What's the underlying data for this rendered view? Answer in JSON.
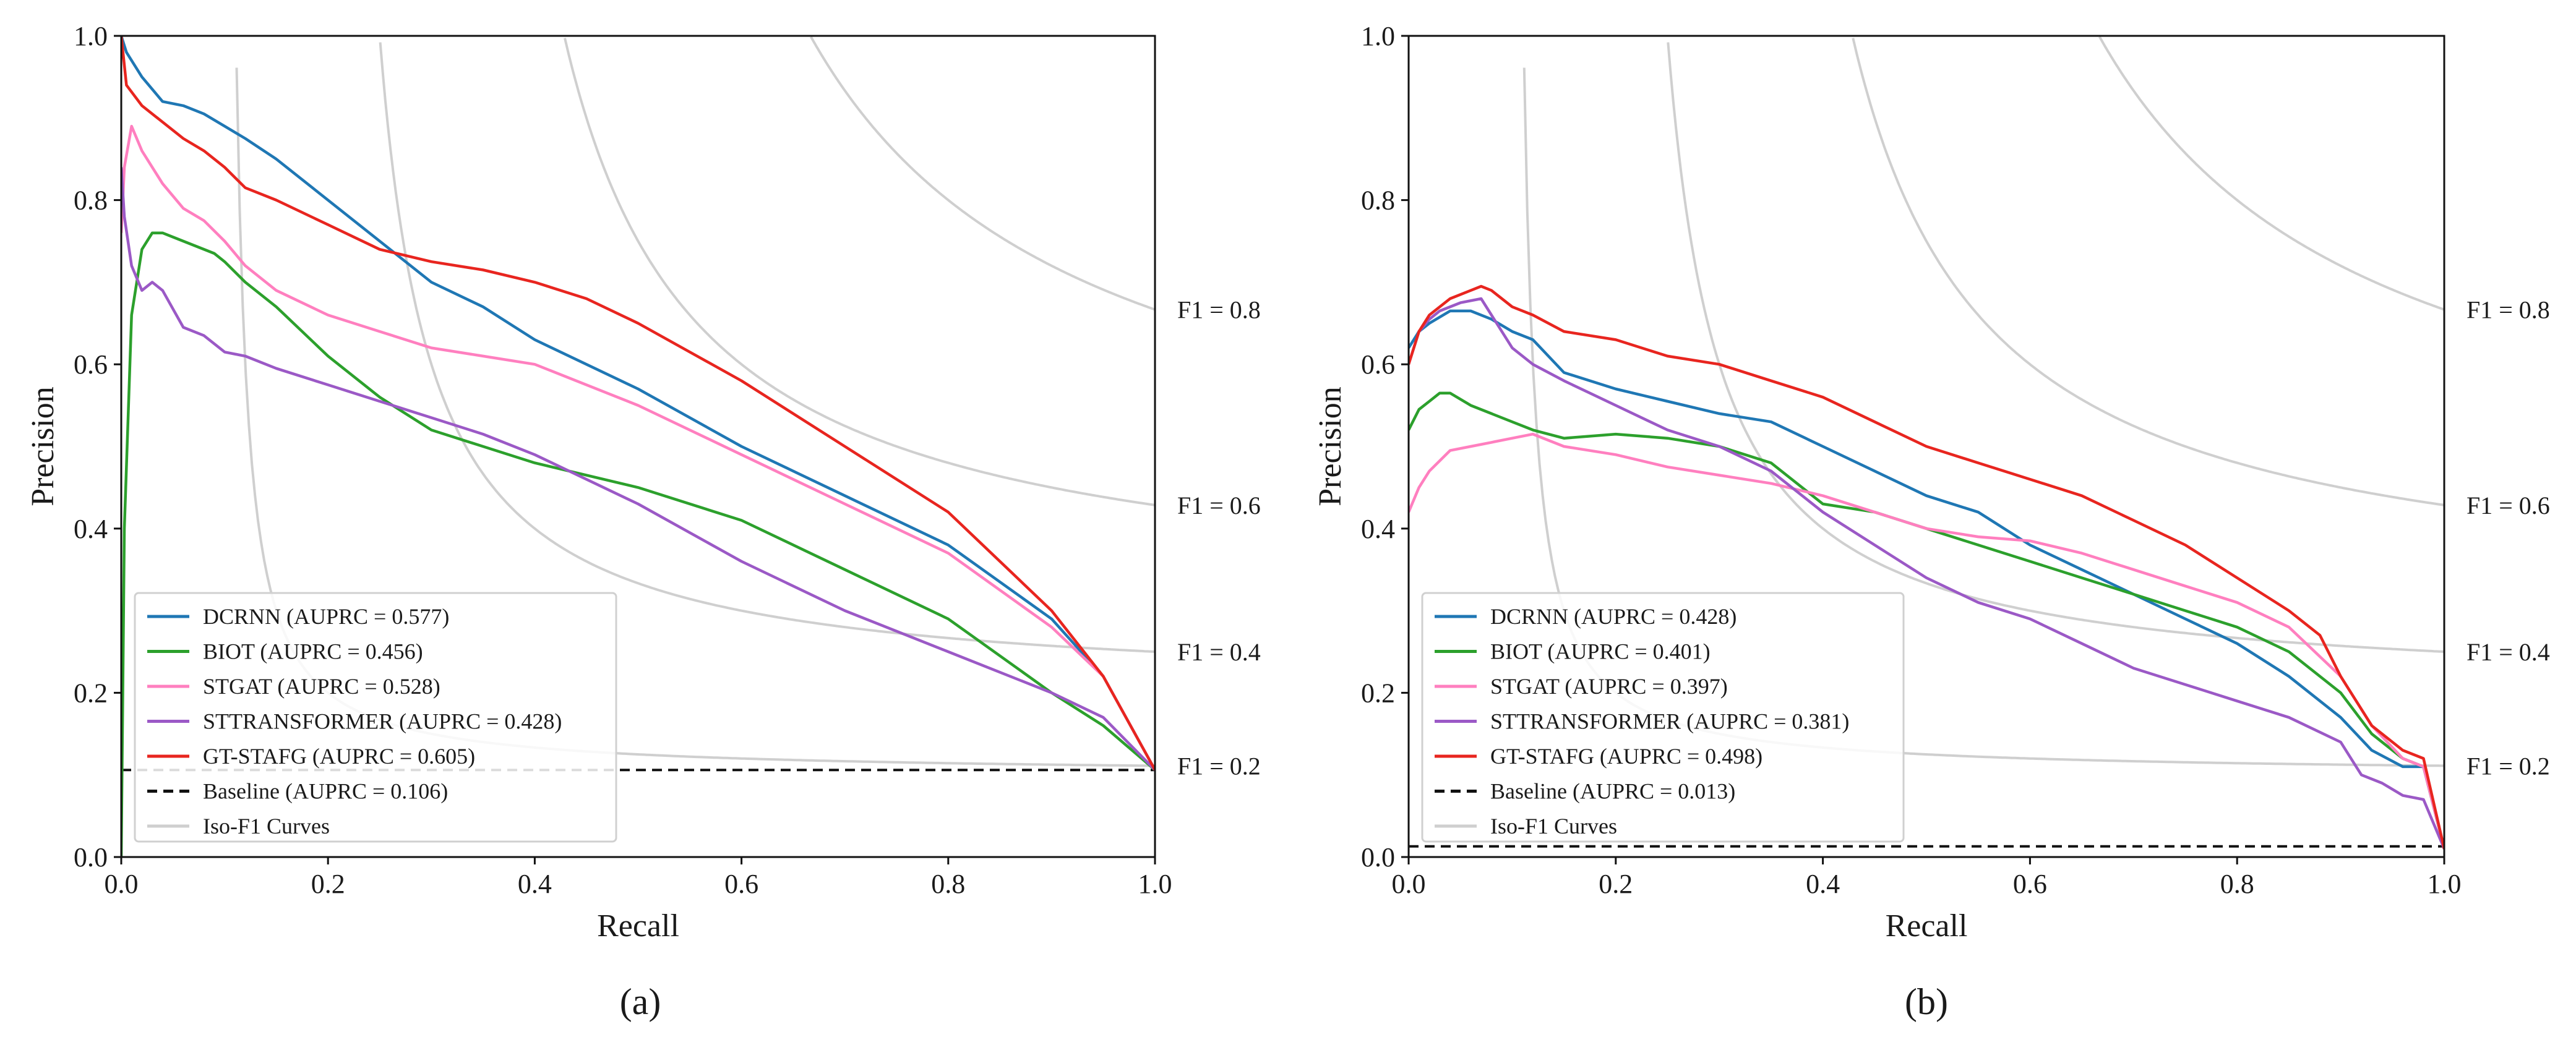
{
  "figure": {
    "panel_labels": [
      "(a)",
      "(b)"
    ]
  },
  "chart_data": [
    {
      "type": "line",
      "panel": "(a)",
      "xlabel": "Recall",
      "ylabel": "Precision",
      "xlim": [
        0,
        1
      ],
      "ylim": [
        0,
        1
      ],
      "xticks": [
        "0.0",
        "0.2",
        "0.4",
        "0.6",
        "0.8",
        "1.0"
      ],
      "yticks": [
        "0.0",
        "0.2",
        "0.4",
        "0.6",
        "0.8",
        "1.0"
      ],
      "grid": false,
      "legend_position": "lower-left",
      "iso_f1": [
        {
          "f": 0.2,
          "label": "F1 = 0.2"
        },
        {
          "f": 0.4,
          "label": "F1 = 0.4"
        },
        {
          "f": 0.6,
          "label": "F1 = 0.6"
        },
        {
          "f": 0.8,
          "label": "F1 = 0.8"
        }
      ],
      "iso_f1_legend": "Iso-F1 Curves",
      "baseline": {
        "value": 0.106,
        "label": "Baseline (AUPRC = 0.106)"
      },
      "series": [
        {
          "name": "DCRNN",
          "label": "DCRNN (AUPRC = 0.577)",
          "color": "#1f77b4",
          "x": [
            0,
            0.005,
            0.02,
            0.04,
            0.06,
            0.08,
            0.1,
            0.12,
            0.15,
            0.2,
            0.25,
            0.3,
            0.35,
            0.4,
            0.5,
            0.6,
            0.7,
            0.8,
            0.9,
            0.95,
            1.0
          ],
          "y": [
            1.0,
            0.98,
            0.95,
            0.92,
            0.915,
            0.905,
            0.89,
            0.875,
            0.85,
            0.8,
            0.75,
            0.7,
            0.67,
            0.63,
            0.57,
            0.5,
            0.44,
            0.38,
            0.29,
            0.22,
            0.106
          ]
        },
        {
          "name": "BIOT",
          "label": "BIOT (AUPRC = 0.456)",
          "color": "#2ca02c",
          "x": [
            0,
            0.003,
            0.01,
            0.02,
            0.03,
            0.04,
            0.05,
            0.07,
            0.09,
            0.1,
            0.12,
            0.15,
            0.2,
            0.25,
            0.3,
            0.35,
            0.4,
            0.5,
            0.6,
            0.7,
            0.8,
            0.9,
            0.95,
            1.0
          ],
          "y": [
            0,
            0.4,
            0.66,
            0.74,
            0.76,
            0.76,
            0.755,
            0.745,
            0.735,
            0.725,
            0.7,
            0.67,
            0.61,
            0.56,
            0.52,
            0.5,
            0.48,
            0.45,
            0.41,
            0.35,
            0.29,
            0.2,
            0.16,
            0.106
          ]
        },
        {
          "name": "STGAT",
          "label": "STGAT (AUPRC = 0.528)",
          "color": "#ff7fbf",
          "x": [
            0,
            0.003,
            0.01,
            0.02,
            0.04,
            0.06,
            0.08,
            0.1,
            0.12,
            0.15,
            0.2,
            0.25,
            0.3,
            0.35,
            0.4,
            0.5,
            0.6,
            0.7,
            0.8,
            0.9,
            0.95,
            1.0
          ],
          "y": [
            0.76,
            0.84,
            0.89,
            0.86,
            0.82,
            0.79,
            0.775,
            0.75,
            0.72,
            0.69,
            0.66,
            0.64,
            0.62,
            0.61,
            0.6,
            0.55,
            0.49,
            0.43,
            0.37,
            0.28,
            0.22,
            0.106
          ]
        },
        {
          "name": "STTRANSFORMER",
          "label": "STTRANSFORMER (AUPRC = 0.428)",
          "color": "#9b59c6",
          "x": [
            0,
            0.003,
            0.01,
            0.02,
            0.03,
            0.04,
            0.06,
            0.08,
            0.1,
            0.12,
            0.15,
            0.2,
            0.25,
            0.3,
            0.35,
            0.4,
            0.5,
            0.6,
            0.7,
            0.8,
            0.9,
            0.95,
            1.0
          ],
          "y": [
            0.84,
            0.78,
            0.72,
            0.69,
            0.7,
            0.69,
            0.645,
            0.635,
            0.615,
            0.61,
            0.595,
            0.575,
            0.555,
            0.535,
            0.515,
            0.49,
            0.43,
            0.36,
            0.3,
            0.25,
            0.2,
            0.17,
            0.106
          ]
        },
        {
          "name": "GT-STAFG",
          "label": "GT-STAFG (AUPRC = 0.605)",
          "color": "#e8251f",
          "x": [
            0,
            0.005,
            0.02,
            0.04,
            0.06,
            0.08,
            0.1,
            0.12,
            0.15,
            0.2,
            0.25,
            0.3,
            0.35,
            0.4,
            0.45,
            0.5,
            0.6,
            0.7,
            0.8,
            0.9,
            0.95,
            1.0
          ],
          "y": [
            1.0,
            0.94,
            0.915,
            0.895,
            0.875,
            0.86,
            0.84,
            0.815,
            0.8,
            0.77,
            0.74,
            0.725,
            0.715,
            0.7,
            0.68,
            0.65,
            0.58,
            0.5,
            0.42,
            0.3,
            0.22,
            0.106
          ]
        }
      ]
    },
    {
      "type": "line",
      "panel": "(b)",
      "xlabel": "Recall",
      "ylabel": "Precision",
      "xlim": [
        0,
        1
      ],
      "ylim": [
        0,
        1
      ],
      "xticks": [
        "0.0",
        "0.2",
        "0.4",
        "0.6",
        "0.8",
        "1.0"
      ],
      "yticks": [
        "0.0",
        "0.2",
        "0.4",
        "0.6",
        "0.8",
        "1.0"
      ],
      "grid": false,
      "legend_position": "lower-left",
      "iso_f1": [
        {
          "f": 0.2,
          "label": "F1 = 0.2"
        },
        {
          "f": 0.4,
          "label": "F1 = 0.4"
        },
        {
          "f": 0.6,
          "label": "F1 = 0.6"
        },
        {
          "f": 0.8,
          "label": "F1 = 0.8"
        }
      ],
      "iso_f1_legend": "Iso-F1 Curves",
      "baseline": {
        "value": 0.013,
        "label": "Baseline (AUPRC = 0.013)"
      },
      "series": [
        {
          "name": "DCRNN",
          "label": "DCRNN (AUPRC = 0.428)",
          "color": "#1f77b4",
          "x": [
            0,
            0.01,
            0.02,
            0.04,
            0.06,
            0.08,
            0.1,
            0.12,
            0.15,
            0.2,
            0.25,
            0.3,
            0.35,
            0.4,
            0.45,
            0.5,
            0.55,
            0.6,
            0.65,
            0.7,
            0.75,
            0.8,
            0.85,
            0.9,
            0.93,
            0.96,
            0.98,
            1.0
          ],
          "y": [
            0.62,
            0.64,
            0.65,
            0.665,
            0.665,
            0.655,
            0.64,
            0.63,
            0.59,
            0.57,
            0.555,
            0.54,
            0.53,
            0.5,
            0.47,
            0.44,
            0.42,
            0.38,
            0.35,
            0.32,
            0.29,
            0.26,
            0.22,
            0.17,
            0.13,
            0.11,
            0.11,
            0.01
          ]
        },
        {
          "name": "BIOT",
          "label": "BIOT (AUPRC = 0.401)",
          "color": "#2ca02c",
          "x": [
            0,
            0.01,
            0.02,
            0.03,
            0.04,
            0.06,
            0.08,
            0.1,
            0.12,
            0.15,
            0.2,
            0.25,
            0.3,
            0.35,
            0.4,
            0.45,
            0.5,
            0.55,
            0.6,
            0.65,
            0.7,
            0.75,
            0.8,
            0.85,
            0.9,
            0.93,
            0.96,
            0.98,
            1.0
          ],
          "y": [
            0.52,
            0.545,
            0.555,
            0.565,
            0.565,
            0.55,
            0.54,
            0.53,
            0.52,
            0.51,
            0.515,
            0.51,
            0.5,
            0.48,
            0.43,
            0.42,
            0.4,
            0.38,
            0.36,
            0.34,
            0.32,
            0.3,
            0.28,
            0.25,
            0.2,
            0.15,
            0.12,
            0.11,
            0.01
          ]
        },
        {
          "name": "STGAT",
          "label": "STGAT (AUPRC = 0.397)",
          "color": "#ff7fbf",
          "x": [
            0,
            0.01,
            0.02,
            0.04,
            0.06,
            0.08,
            0.1,
            0.12,
            0.15,
            0.2,
            0.25,
            0.3,
            0.35,
            0.4,
            0.45,
            0.5,
            0.55,
            0.6,
            0.65,
            0.7,
            0.75,
            0.8,
            0.85,
            0.9,
            0.93,
            0.96,
            0.98,
            1.0
          ],
          "y": [
            0.42,
            0.45,
            0.47,
            0.495,
            0.5,
            0.505,
            0.51,
            0.515,
            0.5,
            0.49,
            0.475,
            0.465,
            0.455,
            0.44,
            0.42,
            0.4,
            0.39,
            0.385,
            0.37,
            0.35,
            0.33,
            0.31,
            0.28,
            0.22,
            0.16,
            0.12,
            0.11,
            0.01
          ]
        },
        {
          "name": "STTRANSFORMER",
          "label": "STTRANSFORMER (AUPRC = 0.381)",
          "color": "#9b59c6",
          "x": [
            0,
            0.01,
            0.02,
            0.03,
            0.05,
            0.07,
            0.08,
            0.1,
            0.12,
            0.15,
            0.2,
            0.25,
            0.3,
            0.35,
            0.4,
            0.45,
            0.5,
            0.55,
            0.6,
            0.65,
            0.7,
            0.75,
            0.8,
            0.85,
            0.9,
            0.92,
            0.94,
            0.96,
            0.98,
            1.0
          ],
          "y": [
            0.6,
            0.64,
            0.655,
            0.665,
            0.675,
            0.68,
            0.66,
            0.62,
            0.6,
            0.58,
            0.55,
            0.52,
            0.5,
            0.47,
            0.42,
            0.38,
            0.34,
            0.31,
            0.29,
            0.26,
            0.23,
            0.21,
            0.19,
            0.17,
            0.14,
            0.1,
            0.09,
            0.075,
            0.07,
            0.01
          ]
        },
        {
          "name": "GT-STAFG",
          "label": "GT-STAFG (AUPRC = 0.498)",
          "color": "#e8251f",
          "x": [
            0,
            0.01,
            0.02,
            0.04,
            0.06,
            0.07,
            0.08,
            0.1,
            0.12,
            0.15,
            0.2,
            0.25,
            0.3,
            0.35,
            0.4,
            0.45,
            0.5,
            0.55,
            0.6,
            0.65,
            0.7,
            0.75,
            0.8,
            0.85,
            0.88,
            0.9,
            0.93,
            0.96,
            0.98,
            1.0
          ],
          "y": [
            0.6,
            0.64,
            0.66,
            0.68,
            0.69,
            0.695,
            0.69,
            0.67,
            0.66,
            0.64,
            0.63,
            0.61,
            0.6,
            0.58,
            0.56,
            0.53,
            0.5,
            0.48,
            0.46,
            0.44,
            0.41,
            0.38,
            0.34,
            0.3,
            0.27,
            0.22,
            0.16,
            0.13,
            0.12,
            0.01
          ]
        }
      ]
    }
  ]
}
